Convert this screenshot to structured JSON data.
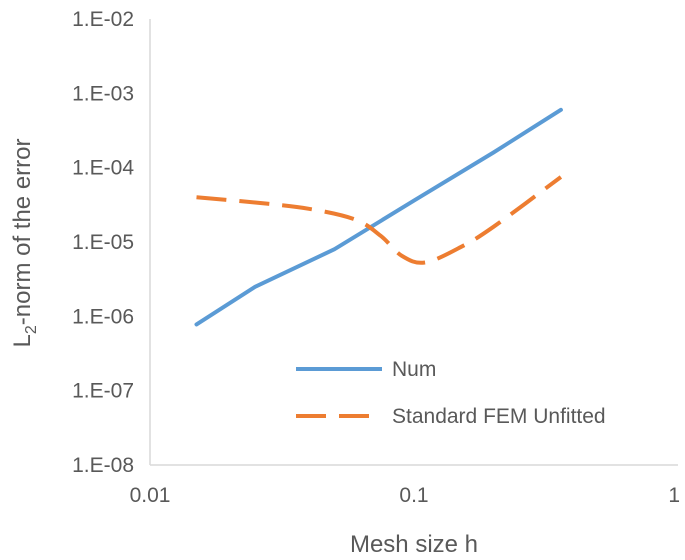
{
  "chart_data": {
    "type": "line",
    "title": "",
    "xlabel": "Mesh size h",
    "ylabel_main": "L",
    "ylabel_sub": "2",
    "ylabel_rest": "-norm of the error",
    "x_scale": "log",
    "y_scale": "log",
    "xlim": [
      0.01,
      1
    ],
    "ylim": [
      1e-08,
      0.01
    ],
    "x_ticks": [
      {
        "value": 0.01,
        "label": "0.01"
      },
      {
        "value": 0.1,
        "label": "0.1"
      },
      {
        "value": 1,
        "label": "1"
      }
    ],
    "y_ticks": [
      {
        "value": 1e-08,
        "label": "1.E-08"
      },
      {
        "value": 1e-07,
        "label": "1.E-07"
      },
      {
        "value": 1e-06,
        "label": "1.E-06"
      },
      {
        "value": 1e-05,
        "label": "1.E-05"
      },
      {
        "value": 0.0001,
        "label": "1.E-04"
      },
      {
        "value": 0.001,
        "label": "1.E-03"
      },
      {
        "value": 0.01,
        "label": "1.E-02"
      }
    ],
    "grid": false,
    "legend_position": "bottom-right",
    "series": [
      {
        "name": "Num",
        "color": "#5B9BD5",
        "dash": "solid",
        "x": [
          0.015,
          0.025,
          0.05,
          0.1,
          0.2,
          0.36
        ],
        "y": [
          7.8e-07,
          2.5e-06,
          8e-06,
          3.6e-05,
          0.00016,
          0.0006
        ]
      },
      {
        "name": "Standard FEM Unfitted",
        "color": "#ED7D31",
        "dash": "dashed",
        "x": [
          0.015,
          0.025,
          0.04,
          0.06,
          0.075,
          0.09,
          0.11,
          0.15,
          0.2,
          0.36
        ],
        "y": [
          4e-05,
          3.4e-05,
          2.8e-05,
          2e-05,
          1.2e-05,
          6.5e-06,
          5.3e-06,
          8.5e-06,
          1.6e-05,
          7.5e-05
        ]
      }
    ]
  }
}
